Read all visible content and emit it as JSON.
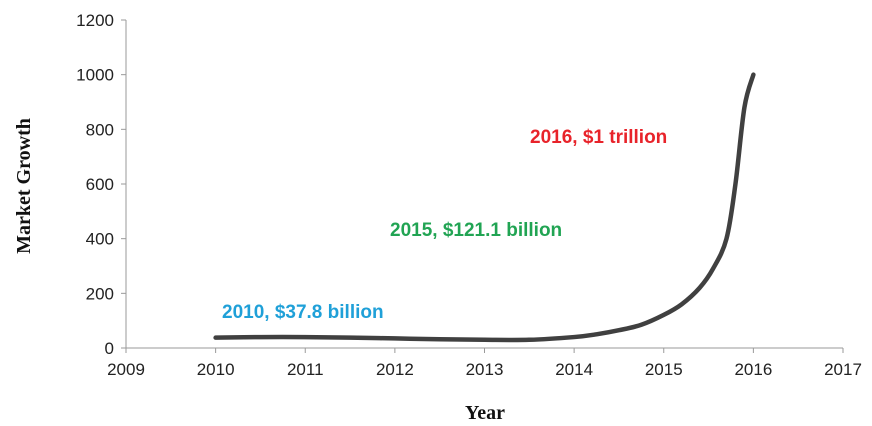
{
  "chart_data": {
    "type": "line",
    "title": "",
    "xlabel": "Year",
    "ylabel": "Market Growth",
    "xlim": [
      2009,
      2017
    ],
    "ylim": [
      0,
      1200
    ],
    "x_ticks": [
      "2009",
      "2010",
      "2011",
      "2012",
      "2013",
      "2014",
      "2015",
      "2016",
      "2017"
    ],
    "y_ticks": [
      "0",
      "200",
      "400",
      "600",
      "800",
      "1000",
      "1200"
    ],
    "grid": false,
    "legend": "none",
    "series": [
      {
        "color": "#404040",
        "x": [
          2010,
          2010.5,
          2011,
          2011.5,
          2012,
          2012.5,
          2013,
          2013.5,
          2014,
          2014.25,
          2014.5,
          2014.75,
          2015,
          2015.2,
          2015.4,
          2015.55,
          2015.7,
          2015.8,
          2015.9,
          2016
        ],
        "values": [
          37.8,
          40,
          40,
          38,
          35,
          32,
          30,
          30,
          40,
          50,
          65,
          85,
          121.1,
          160,
          220,
          290,
          400,
          600,
          880,
          1000
        ]
      }
    ],
    "annotations": [
      {
        "text": "2010, $37.8 billion",
        "color": "#1fa0d8"
      },
      {
        "text": "2015, $121.1 billion",
        "color": "#21a453"
      },
      {
        "text": "2016, $1 trillion",
        "color": "#e8232a"
      }
    ]
  }
}
